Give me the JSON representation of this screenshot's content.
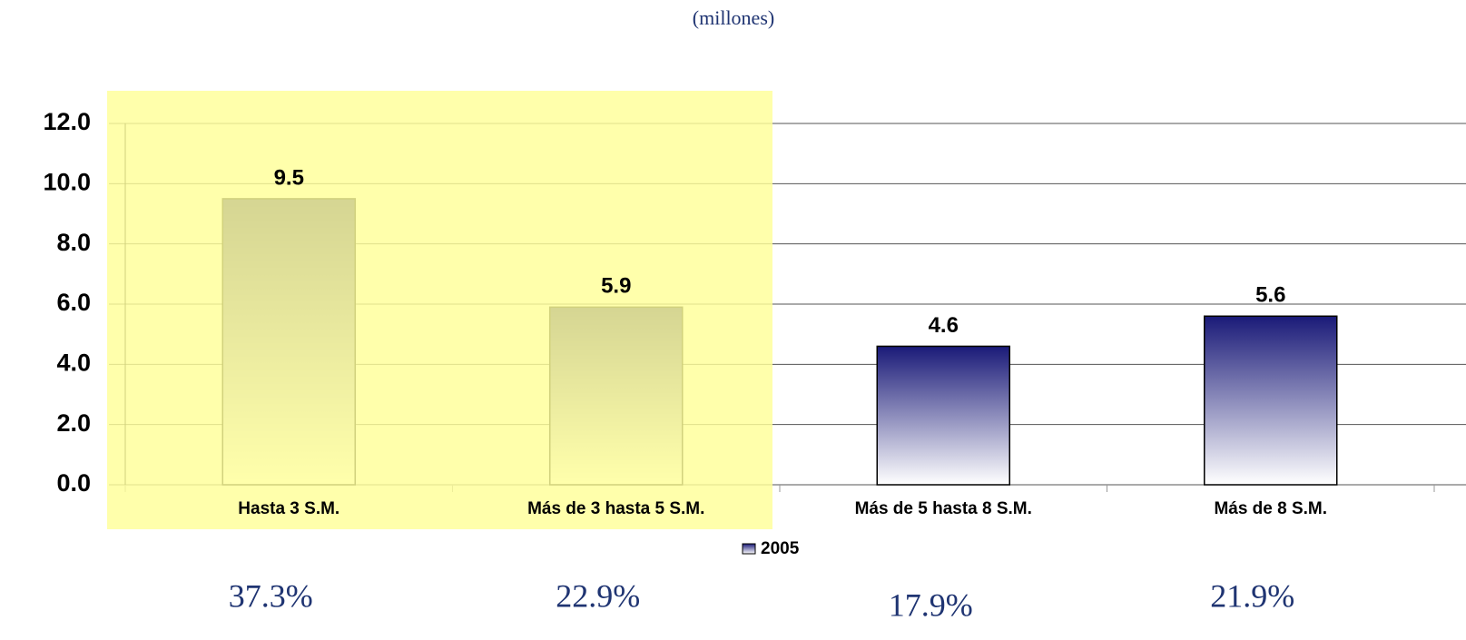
{
  "chart_data": {
    "type": "bar",
    "title": "(millones)",
    "categories": [
      "Hasta 3 S.M.",
      "Más de 3 hasta 5 S.M.",
      "Más de 5 hasta 8 S.M.",
      "Más de 8 S.M."
    ],
    "series": [
      {
        "name": "2005",
        "color": "#1a1a78",
        "values": [
          9.5,
          5.9,
          4.6,
          5.6
        ]
      }
    ],
    "ylim": [
      0,
      12
    ],
    "yticks": [
      {
        "value": 0,
        "label": "0.0"
      },
      {
        "value": 2,
        "label": "2.0"
      },
      {
        "value": 4,
        "label": "4.0"
      },
      {
        "value": 6,
        "label": "6.0"
      },
      {
        "value": 8,
        "label": "8.0"
      },
      {
        "value": 10,
        "label": "10.0"
      },
      {
        "value": 12,
        "label": "12.0"
      }
    ],
    "grid": true,
    "legend": "bottom",
    "annotations": [
      "37.3%",
      "22.9%",
      "17.9%",
      "21.9%"
    ]
  }
}
